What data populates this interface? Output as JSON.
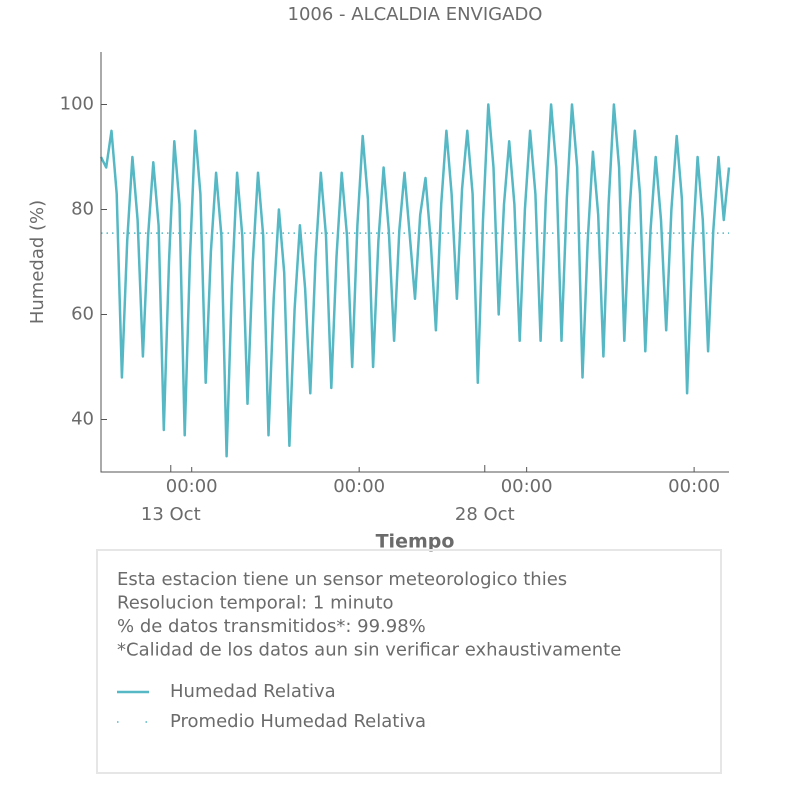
{
  "chart_data": {
    "type": "line",
    "title": "1006 - ALCALDIA ENVIGADO",
    "ylabel": "Humedad (%)",
    "xlabel": "Tiempo",
    "ylim": [
      30,
      110
    ],
    "yticks": [
      40,
      60,
      80,
      100
    ],
    "xlim": [
      "10-09T16:00",
      "11-08T16:00"
    ],
    "xticks": [
      {
        "value": "10-14T00:00",
        "label": "00:00"
      },
      {
        "value": "10-22T00:00",
        "label": "00:00"
      },
      {
        "value": "10-30T00:00",
        "label": "00:00"
      },
      {
        "value": "11-07T00:00",
        "label": "00:00"
      }
    ],
    "xticks_major": [
      {
        "value": "10-13T00:00",
        "label": "13 Oct"
      },
      {
        "value": "10-28T00:00",
        "label": "28 Oct"
      }
    ],
    "info": [
      "Esta estacion tiene un sensor meteorologico thies",
      "Resolucion temporal: 1 minuto",
      "% de datos transmitidos*: 99.98%",
      "*Calidad de los datos aun sin verificar exhaustivamente"
    ],
    "series": [
      {
        "name": "Humedad Relativa",
        "color": "#55b8c4",
        "style": "solid",
        "x": [
          "10-09T16:00",
          "10-09T22:00",
          "10-10T04:00",
          "10-10T10:00",
          "10-10T16:00",
          "10-10T22:00",
          "10-11T04:00",
          "10-11T10:00",
          "10-11T16:00",
          "10-11T22:00",
          "10-12T04:00",
          "10-12T10:00",
          "10-12T16:00",
          "10-12T22:00",
          "10-13T04:00",
          "10-13T10:00",
          "10-13T16:00",
          "10-13T22:00",
          "10-14T04:00",
          "10-14T10:00",
          "10-14T16:00",
          "10-14T22:00",
          "10-15T04:00",
          "10-15T10:00",
          "10-15T16:00",
          "10-15T22:00",
          "10-16T04:00",
          "10-16T10:00",
          "10-16T16:00",
          "10-16T22:00",
          "10-17T04:00",
          "10-17T10:00",
          "10-17T16:00",
          "10-17T22:00",
          "10-18T04:00",
          "10-18T10:00",
          "10-18T16:00",
          "10-18T22:00",
          "10-19T04:00",
          "10-19T10:00",
          "10-19T16:00",
          "10-19T22:00",
          "10-20T04:00",
          "10-20T10:00",
          "10-20T16:00",
          "10-20T22:00",
          "10-21T04:00",
          "10-21T10:00",
          "10-21T16:00",
          "10-21T22:00",
          "10-22T04:00",
          "10-22T10:00",
          "10-22T16:00",
          "10-22T22:00",
          "10-23T04:00",
          "10-23T10:00",
          "10-23T16:00",
          "10-23T22:00",
          "10-24T04:00",
          "10-24T10:00",
          "10-24T16:00",
          "10-24T22:00",
          "10-25T04:00",
          "10-25T10:00",
          "10-25T16:00",
          "10-25T22:00",
          "10-26T04:00",
          "10-26T10:00",
          "10-26T16:00",
          "10-26T22:00",
          "10-27T04:00",
          "10-27T10:00",
          "10-27T16:00",
          "10-27T22:00",
          "10-28T04:00",
          "10-28T10:00",
          "10-28T16:00",
          "10-28T22:00",
          "10-29T04:00",
          "10-29T10:00",
          "10-29T16:00",
          "10-29T22:00",
          "10-30T04:00",
          "10-30T10:00",
          "10-30T16:00",
          "10-30T22:00",
          "10-31T04:00",
          "10-31T10:00",
          "10-31T16:00",
          "10-31T22:00",
          "11-01T04:00",
          "11-01T10:00",
          "11-01T16:00",
          "11-01T22:00",
          "11-02T04:00",
          "11-02T10:00",
          "11-02T16:00",
          "11-02T22:00",
          "11-03T04:00",
          "11-03T10:00",
          "11-03T16:00",
          "11-03T22:00",
          "11-04T04:00",
          "11-04T10:00",
          "11-04T16:00",
          "11-04T22:00",
          "11-05T04:00",
          "11-05T10:00",
          "11-05T16:00",
          "11-05T22:00",
          "11-06T04:00",
          "11-06T10:00",
          "11-06T16:00",
          "11-06T22:00",
          "11-07T04:00",
          "11-07T10:00",
          "11-07T16:00",
          "11-07T22:00",
          "11-08T04:00",
          "11-08T10:00",
          "11-08T16:00"
        ],
        "values": [
          90,
          88,
          95,
          83,
          48,
          74,
          90,
          78,
          52,
          75,
          89,
          77,
          38,
          70,
          93,
          81,
          37,
          71,
          95,
          83,
          47,
          72,
          87,
          75,
          33,
          65,
          87,
          75,
          43,
          70,
          87,
          75,
          37,
          63,
          80,
          68,
          35,
          61,
          77,
          65,
          45,
          71,
          87,
          75,
          46,
          71,
          87,
          75,
          50,
          77,
          94,
          82,
          50,
          74,
          88,
          76,
          55,
          76,
          87,
          75,
          63,
          79,
          86,
          74,
          57,
          81,
          95,
          83,
          63,
          84,
          95,
          83,
          47,
          78,
          100,
          88,
          60,
          81,
          93,
          81,
          55,
          80,
          95,
          83,
          55,
          82,
          100,
          88,
          55,
          82,
          100,
          88,
          48,
          74,
          91,
          79,
          52,
          81,
          100,
          88,
          55,
          80,
          95,
          83,
          53,
          76,
          90,
          78,
          57,
          80,
          94,
          82,
          45,
          72,
          90,
          78,
          53,
          76,
          90,
          78,
          88
        ]
      },
      {
        "name": "Promedio Humedad Relativa",
        "color": "#55b8c4",
        "style": "dotted",
        "x": [
          "10-09T16:00",
          "11-08T16:00"
        ],
        "values": [
          75.5,
          75.5
        ]
      }
    ]
  }
}
